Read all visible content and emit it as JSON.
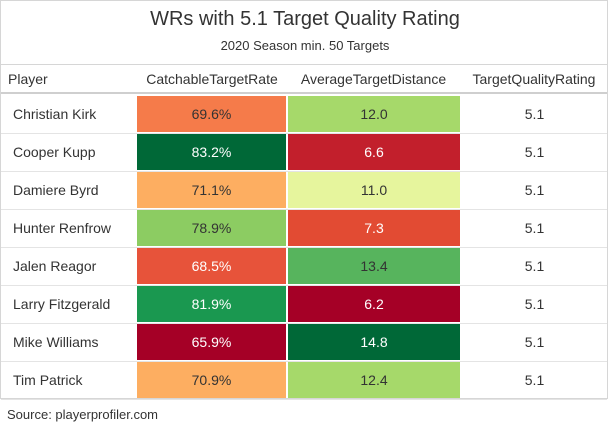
{
  "chart_data": {
    "type": "table",
    "title": "WRs with 5.1 Target Quality Rating",
    "subtitle": "2020 Season min. 50 Targets",
    "columns": [
      "Player",
      "CatchableTargetRate",
      "AverageTargetDistance",
      "TargetQualityRating"
    ],
    "rows": [
      {
        "player": "Christian Kirk",
        "ctr": "69.6%",
        "atd": "12.0",
        "tqr": "5.1",
        "ctr_color": "#f57b4a",
        "ctr_text": "#333333",
        "atd_color": "#a6d96a",
        "atd_text": "#333333"
      },
      {
        "player": "Cooper Kupp",
        "ctr": "83.2%",
        "atd": "6.6",
        "tqr": "5.1",
        "ctr_color": "#006837",
        "ctr_text": "#ffffff",
        "atd_color": "#c21f2c",
        "atd_text": "#ffffff"
      },
      {
        "player": "Damiere Byrd",
        "ctr": "71.1%",
        "atd": "11.0",
        "tqr": "5.1",
        "ctr_color": "#fdae61",
        "ctr_text": "#333333",
        "atd_color": "#e6f59d",
        "atd_text": "#333333"
      },
      {
        "player": "Hunter Renfrow",
        "ctr": "78.9%",
        "atd": "7.3",
        "tqr": "5.1",
        "ctr_color": "#8ccc62",
        "ctr_text": "#333333",
        "atd_color": "#e24b33",
        "atd_text": "#ffffff"
      },
      {
        "player": "Jalen Reagor",
        "ctr": "68.5%",
        "atd": "13.4",
        "tqr": "5.1",
        "ctr_color": "#e7533a",
        "ctr_text": "#ffffff",
        "atd_color": "#57b45d",
        "atd_text": "#333333"
      },
      {
        "player": "Larry Fitzgerald",
        "ctr": "81.9%",
        "atd": "6.2",
        "tqr": "5.1",
        "ctr_color": "#1a9850",
        "ctr_text": "#ffffff",
        "atd_color": "#a50026",
        "atd_text": "#ffffff"
      },
      {
        "player": "Mike Williams",
        "ctr": "65.9%",
        "atd": "14.8",
        "tqr": "5.1",
        "ctr_color": "#a50026",
        "ctr_text": "#ffffff",
        "atd_color": "#006837",
        "atd_text": "#ffffff"
      },
      {
        "player": "Tim Patrick",
        "ctr": "70.9%",
        "atd": "12.4",
        "tqr": "5.1",
        "ctr_color": "#fdae61",
        "ctr_text": "#333333",
        "atd_color": "#a6d96a",
        "atd_text": "#333333"
      }
    ],
    "source": "Source: playerprofiler.com"
  }
}
